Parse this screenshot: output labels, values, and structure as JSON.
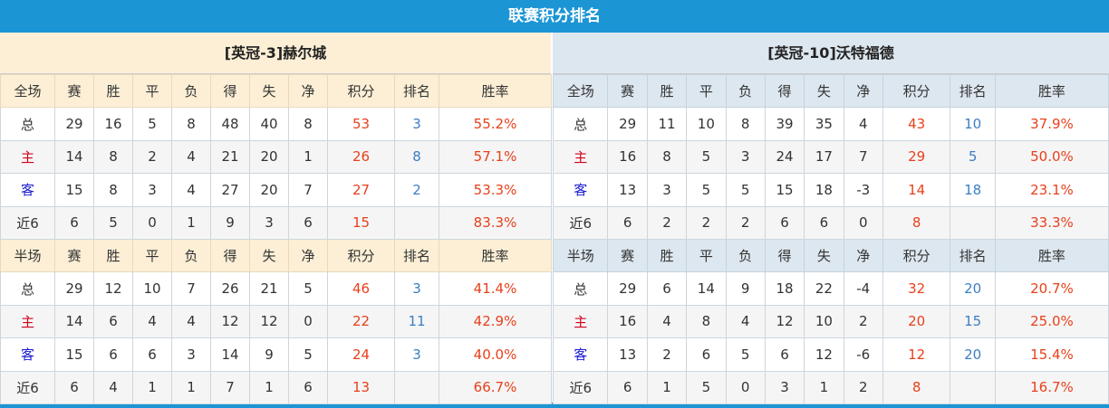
{
  "title": "联赛积分排名",
  "columns_full": [
    "全场",
    "赛",
    "胜",
    "平",
    "负",
    "得",
    "失",
    "净",
    "积分",
    "排名",
    "胜率"
  ],
  "columns_half": [
    "半场",
    "赛",
    "胜",
    "平",
    "负",
    "得",
    "失",
    "净",
    "积分",
    "排名",
    "胜率"
  ],
  "teams": [
    {
      "name": "[英冠-3]赫尔城",
      "full": [
        [
          "总",
          "29",
          "16",
          "5",
          "8",
          "48",
          "40",
          "8",
          "53",
          "3",
          "55.2%"
        ],
        [
          "主",
          "14",
          "8",
          "2",
          "4",
          "21",
          "20",
          "1",
          "26",
          "8",
          "57.1%"
        ],
        [
          "客",
          "15",
          "8",
          "3",
          "4",
          "27",
          "20",
          "7",
          "27",
          "2",
          "53.3%"
        ],
        [
          "近6",
          "6",
          "5",
          "0",
          "1",
          "9",
          "3",
          "6",
          "15",
          "",
          "83.3%"
        ]
      ],
      "half": [
        [
          "总",
          "29",
          "12",
          "10",
          "7",
          "26",
          "21",
          "5",
          "46",
          "3",
          "41.4%"
        ],
        [
          "主",
          "14",
          "6",
          "4",
          "4",
          "12",
          "12",
          "0",
          "22",
          "11",
          "42.9%"
        ],
        [
          "客",
          "15",
          "6",
          "6",
          "3",
          "14",
          "9",
          "5",
          "24",
          "3",
          "40.0%"
        ],
        [
          "近6",
          "6",
          "4",
          "1",
          "1",
          "7",
          "1",
          "6",
          "13",
          "",
          "66.7%"
        ]
      ]
    },
    {
      "name": "[英冠-10]沃特福德",
      "full": [
        [
          "总",
          "29",
          "11",
          "10",
          "8",
          "39",
          "35",
          "4",
          "43",
          "10",
          "37.9%"
        ],
        [
          "主",
          "16",
          "8",
          "5",
          "3",
          "24",
          "17",
          "7",
          "29",
          "5",
          "50.0%"
        ],
        [
          "客",
          "13",
          "3",
          "5",
          "5",
          "15",
          "18",
          "-3",
          "14",
          "18",
          "23.1%"
        ],
        [
          "近6",
          "6",
          "2",
          "2",
          "2",
          "6",
          "6",
          "0",
          "8",
          "",
          "33.3%"
        ]
      ],
      "half": [
        [
          "总",
          "29",
          "6",
          "14",
          "9",
          "18",
          "22",
          "-4",
          "32",
          "20",
          "20.7%"
        ],
        [
          "主",
          "16",
          "4",
          "8",
          "4",
          "12",
          "10",
          "2",
          "20",
          "15",
          "25.0%"
        ],
        [
          "客",
          "13",
          "2",
          "6",
          "5",
          "6",
          "12",
          "-6",
          "12",
          "20",
          "15.4%"
        ],
        [
          "近6",
          "6",
          "1",
          "5",
          "0",
          "3",
          "1",
          "2",
          "8",
          "",
          "16.7%"
        ]
      ]
    }
  ]
}
